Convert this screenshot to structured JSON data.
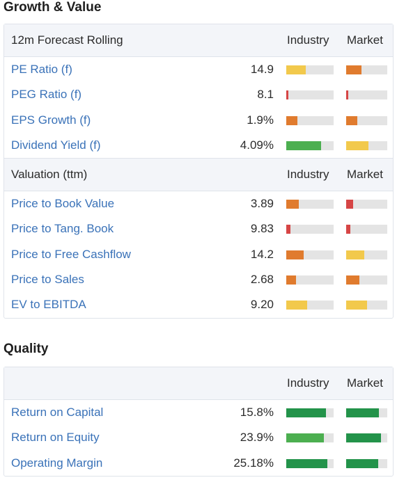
{
  "colors": {
    "yellow": "#f2c94c",
    "orange": "#e07b2e",
    "red": "#d64545",
    "light_green": "#4caf50",
    "dark_green": "#23934a",
    "bar_bg": "#e4e4e4",
    "link": "#3a72b8"
  },
  "growth_value": {
    "title": "Growth & Value",
    "forecast": {
      "header": "12m Forecast Rolling",
      "industry_label": "Industry",
      "market_label": "Market",
      "rows": [
        {
          "name": "PE Ratio (f)",
          "value": "14.9",
          "industry": {
            "level": 0.41,
            "color": "yellow"
          },
          "market": {
            "level": 0.37,
            "color": "orange"
          }
        },
        {
          "name": "PEG Ratio (f)",
          "value": "8.1",
          "industry": {
            "level": 0.04,
            "color": "red"
          },
          "market": {
            "level": 0.05,
            "color": "red"
          }
        },
        {
          "name": "EPS Growth (f)",
          "value": "1.9%",
          "industry": {
            "level": 0.24,
            "color": "orange"
          },
          "market": {
            "level": 0.27,
            "color": "orange"
          }
        },
        {
          "name": "Dividend Yield (f)",
          "value": "4.09%",
          "industry": {
            "level": 0.74,
            "color": "light_green"
          },
          "market": {
            "level": 0.54,
            "color": "yellow"
          }
        }
      ]
    },
    "valuation": {
      "header": "Valuation (ttm)",
      "industry_label": "Industry",
      "market_label": "Market",
      "rows": [
        {
          "name": "Price to Book Value",
          "value": "3.89",
          "industry": {
            "level": 0.26,
            "color": "orange"
          },
          "market": {
            "level": 0.17,
            "color": "red"
          }
        },
        {
          "name": "Price to Tang. Book",
          "value": "9.83",
          "industry": {
            "level": 0.09,
            "color": "red"
          },
          "market": {
            "level": 0.1,
            "color": "red"
          }
        },
        {
          "name": "Price to Free Cashflow",
          "value": "14.2",
          "industry": {
            "level": 0.37,
            "color": "orange"
          },
          "market": {
            "level": 0.44,
            "color": "yellow"
          }
        },
        {
          "name": "Price to Sales",
          "value": "2.68",
          "industry": {
            "level": 0.21,
            "color": "orange"
          },
          "market": {
            "level": 0.32,
            "color": "orange"
          }
        },
        {
          "name": "EV to EBITDA",
          "value": "9.20",
          "industry": {
            "level": 0.44,
            "color": "yellow"
          },
          "market": {
            "level": 0.51,
            "color": "yellow"
          }
        }
      ]
    }
  },
  "quality": {
    "title": "Quality",
    "header": "",
    "industry_label": "Industry",
    "market_label": "Market",
    "rows": [
      {
        "name": "Return on Capital",
        "value": "15.8%",
        "industry": {
          "level": 0.84,
          "color": "dark_green"
        },
        "market": {
          "level": 0.8,
          "color": "dark_green"
        }
      },
      {
        "name": "Return on Equity",
        "value": "23.9%",
        "industry": {
          "level": 0.8,
          "color": "light_green"
        },
        "market": {
          "level": 0.85,
          "color": "dark_green"
        }
      },
      {
        "name": "Operating Margin",
        "value": "25.18%",
        "industry": {
          "level": 0.87,
          "color": "dark_green"
        },
        "market": {
          "level": 0.78,
          "color": "dark_green"
        }
      }
    ]
  }
}
